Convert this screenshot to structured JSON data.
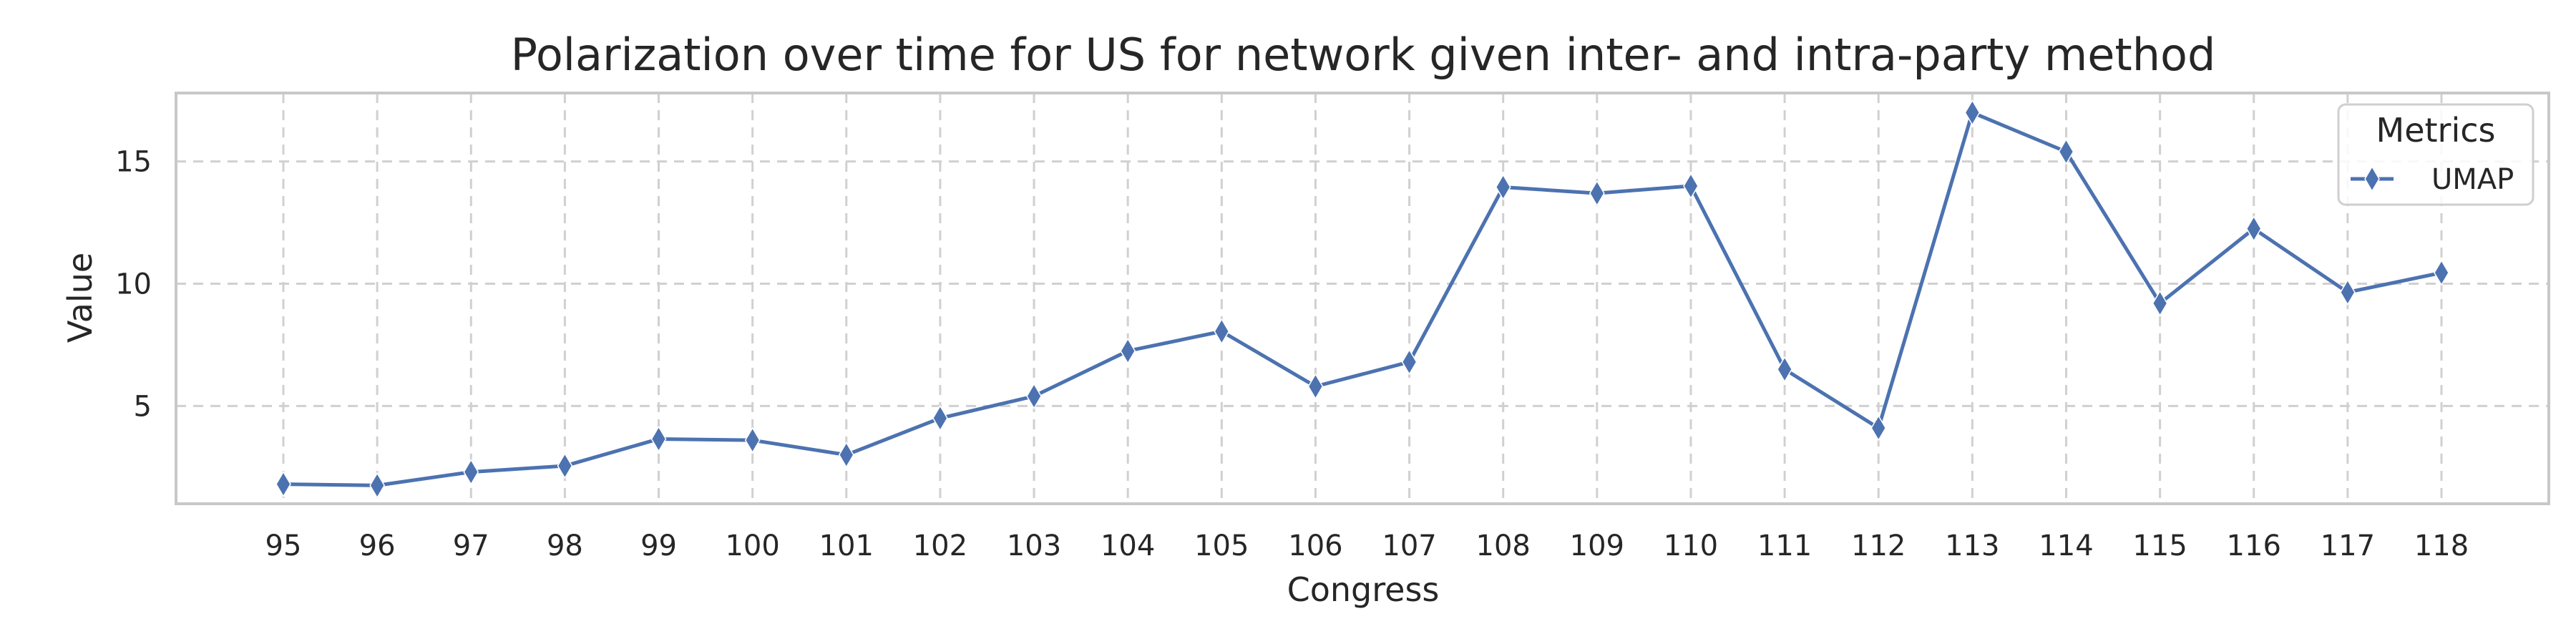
{
  "chart_data": {
    "type": "line",
    "title": "Polarization over time for US for network given inter- and intra-party method",
    "xlabel": "Congress",
    "ylabel": "Value",
    "categories": [
      "95",
      "96",
      "97",
      "98",
      "99",
      "100",
      "101",
      "102",
      "103",
      "104",
      "105",
      "106",
      "107",
      "108",
      "109",
      "110",
      "111",
      "112",
      "113",
      "114",
      "115",
      "116",
      "117",
      "118"
    ],
    "series": [
      {
        "name": "UMAP",
        "color": "#4c72b0",
        "marker": "diamond",
        "values": [
          1.8,
          1.75,
          2.3,
          2.55,
          3.65,
          3.6,
          3.0,
          4.5,
          5.4,
          7.25,
          8.05,
          5.8,
          6.8,
          13.95,
          13.7,
          14.0,
          6.5,
          4.1,
          17.0,
          15.4,
          9.2,
          12.25,
          9.65,
          10.45
        ]
      }
    ],
    "yticks": [
      5,
      10,
      15
    ],
    "ylim": [
      1.0,
      17.8
    ],
    "grid": true,
    "legend": {
      "title": "Metrics",
      "position": "top-right"
    }
  }
}
